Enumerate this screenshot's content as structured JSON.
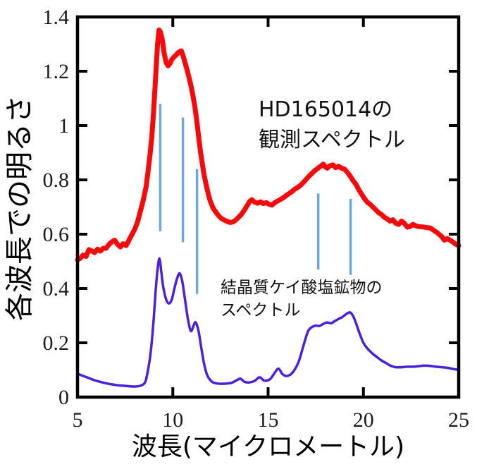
{
  "figure": {
    "background": "#ffffff",
    "axis_color": "#000000",
    "tick_label_color": "#1b1b1b"
  },
  "chart_data": {
    "type": "line",
    "title": "",
    "xlabel": "波長(マイクロメートル)",
    "ylabel": "各波長での明るさ",
    "xlim": [
      5,
      25
    ],
    "ylim": [
      0,
      1.4
    ],
    "x_ticks": [
      5,
      10,
      15,
      20,
      25
    ],
    "x_tick_labels": [
      "5",
      "10",
      "15",
      "20",
      "25"
    ],
    "y_ticks": [
      0,
      0.2,
      0.4,
      0.6,
      0.8,
      1,
      1.2,
      1.4
    ],
    "y_tick_labels": [
      "0",
      "0.2",
      "0.4",
      "0.6",
      "0.8",
      "1",
      "1.2",
      "1.4"
    ],
    "grid": false,
    "legend_position": "none",
    "annotations": [
      {
        "id": "observed",
        "lines": [
          "HD165014の",
          "観測スペクトル"
        ]
      },
      {
        "id": "mineral",
        "lines": [
          "結晶質ケイ酸塩鉱物の",
          "スペクトル"
        ]
      }
    ],
    "marker_lines": {
      "color": "#6fa8dc",
      "width": 3.5,
      "lines": [
        {
          "x": 9.34,
          "y_top": 1.08,
          "y_bottom": 0.61
        },
        {
          "x": 10.53,
          "y_top": 1.03,
          "y_bottom": 0.57
        },
        {
          "x": 11.27,
          "y_top": 0.84,
          "y_bottom": 0.38
        },
        {
          "x": 17.63,
          "y_top": 0.75,
          "y_bottom": 0.47
        },
        {
          "x": 19.33,
          "y_top": 0.73,
          "y_bottom": 0.45
        }
      ]
    },
    "series": [
      {
        "name": "HD165014の観測スペクトル",
        "color": "#f80808",
        "width": 7,
        "smooth": false,
        "points": [
          [
            5.0,
            0.505
          ],
          [
            5.15,
            0.512
          ],
          [
            5.3,
            0.523
          ],
          [
            5.45,
            0.518
          ],
          [
            5.6,
            0.543
          ],
          [
            5.75,
            0.538
          ],
          [
            5.9,
            0.532
          ],
          [
            6.05,
            0.545
          ],
          [
            6.2,
            0.538
          ],
          [
            6.35,
            0.548
          ],
          [
            6.5,
            0.548
          ],
          [
            6.65,
            0.562
          ],
          [
            6.8,
            0.572
          ],
          [
            6.95,
            0.578
          ],
          [
            7.1,
            0.562
          ],
          [
            7.25,
            0.553
          ],
          [
            7.4,
            0.565
          ],
          [
            7.55,
            0.558
          ],
          [
            7.7,
            0.578
          ],
          [
            7.85,
            0.598
          ],
          [
            8.0,
            0.618
          ],
          [
            8.15,
            0.645
          ],
          [
            8.3,
            0.685
          ],
          [
            8.45,
            0.725
          ],
          [
            8.6,
            0.775
          ],
          [
            8.7,
            0.83
          ],
          [
            8.8,
            0.89
          ],
          [
            8.9,
            0.96
          ],
          [
            9.0,
            1.06
          ],
          [
            9.1,
            1.18
          ],
          [
            9.2,
            1.3
          ],
          [
            9.28,
            1.352
          ],
          [
            9.35,
            1.345
          ],
          [
            9.45,
            1.315
          ],
          [
            9.55,
            1.265
          ],
          [
            9.65,
            1.232
          ],
          [
            9.75,
            1.22
          ],
          [
            9.85,
            1.228
          ],
          [
            9.95,
            1.243
          ],
          [
            10.05,
            1.252
          ],
          [
            10.15,
            1.258
          ],
          [
            10.25,
            1.266
          ],
          [
            10.35,
            1.272
          ],
          [
            10.45,
            1.275
          ],
          [
            10.55,
            1.255
          ],
          [
            10.65,
            1.23
          ],
          [
            10.75,
            1.205
          ],
          [
            10.85,
            1.178
          ],
          [
            10.95,
            1.148
          ],
          [
            11.05,
            1.112
          ],
          [
            11.15,
            1.072
          ],
          [
            11.25,
            1.022
          ],
          [
            11.35,
            0.962
          ],
          [
            11.45,
            0.905
          ],
          [
            11.55,
            0.858
          ],
          [
            11.65,
            0.815
          ],
          [
            11.75,
            0.782
          ],
          [
            11.85,
            0.752
          ],
          [
            11.95,
            0.725
          ],
          [
            12.1,
            0.698
          ],
          [
            12.25,
            0.682
          ],
          [
            12.4,
            0.668
          ],
          [
            12.55,
            0.658
          ],
          [
            12.7,
            0.652
          ],
          [
            12.85,
            0.647
          ],
          [
            13.0,
            0.643
          ],
          [
            13.15,
            0.645
          ],
          [
            13.3,
            0.652
          ],
          [
            13.45,
            0.662
          ],
          [
            13.6,
            0.673
          ],
          [
            13.75,
            0.688
          ],
          [
            13.9,
            0.705
          ],
          [
            14.05,
            0.722
          ],
          [
            14.15,
            0.727
          ],
          [
            14.3,
            0.718
          ],
          [
            14.45,
            0.714
          ],
          [
            14.6,
            0.719
          ],
          [
            14.75,
            0.713
          ],
          [
            14.9,
            0.716
          ],
          [
            15.05,
            0.71
          ],
          [
            15.2,
            0.707
          ],
          [
            15.35,
            0.716
          ],
          [
            15.5,
            0.722
          ],
          [
            15.65,
            0.728
          ],
          [
            15.8,
            0.734
          ],
          [
            15.95,
            0.742
          ],
          [
            16.1,
            0.75
          ],
          [
            16.25,
            0.757
          ],
          [
            16.4,
            0.766
          ],
          [
            16.55,
            0.772
          ],
          [
            16.7,
            0.78
          ],
          [
            16.85,
            0.79
          ],
          [
            17.0,
            0.802
          ],
          [
            17.15,
            0.814
          ],
          [
            17.3,
            0.824
          ],
          [
            17.45,
            0.834
          ],
          [
            17.6,
            0.842
          ],
          [
            17.75,
            0.85
          ],
          [
            17.9,
            0.858
          ],
          [
            18.0,
            0.848
          ],
          [
            18.1,
            0.843
          ],
          [
            18.25,
            0.852
          ],
          [
            18.4,
            0.855
          ],
          [
            18.55,
            0.845
          ],
          [
            18.7,
            0.85
          ],
          [
            18.85,
            0.843
          ],
          [
            19.0,
            0.84
          ],
          [
            19.15,
            0.828
          ],
          [
            19.3,
            0.815
          ],
          [
            19.45,
            0.798
          ],
          [
            19.6,
            0.785
          ],
          [
            19.75,
            0.765
          ],
          [
            19.9,
            0.748
          ],
          [
            20.05,
            0.732
          ],
          [
            20.2,
            0.718
          ],
          [
            20.35,
            0.71
          ],
          [
            20.5,
            0.7
          ],
          [
            20.65,
            0.69
          ],
          [
            20.8,
            0.679
          ],
          [
            20.95,
            0.673
          ],
          [
            21.1,
            0.662
          ],
          [
            21.25,
            0.656
          ],
          [
            21.4,
            0.648
          ],
          [
            21.55,
            0.653
          ],
          [
            21.7,
            0.64
          ],
          [
            21.85,
            0.636
          ],
          [
            22.0,
            0.648
          ],
          [
            22.15,
            0.64
          ],
          [
            22.3,
            0.626
          ],
          [
            22.45,
            0.628
          ],
          [
            22.6,
            0.636
          ],
          [
            22.75,
            0.631
          ],
          [
            22.9,
            0.628
          ],
          [
            23.05,
            0.627
          ],
          [
            23.2,
            0.626
          ],
          [
            23.35,
            0.624
          ],
          [
            23.5,
            0.623
          ],
          [
            23.65,
            0.616
          ],
          [
            23.8,
            0.609
          ],
          [
            23.95,
            0.601
          ],
          [
            24.1,
            0.592
          ],
          [
            24.25,
            0.578
          ],
          [
            24.4,
            0.584
          ],
          [
            24.55,
            0.578
          ],
          [
            24.7,
            0.571
          ],
          [
            24.85,
            0.563
          ],
          [
            25.0,
            0.558
          ]
        ]
      },
      {
        "name": "結晶質ケイ酸塩鉱物のスペクトル",
        "color": "#4a21dc",
        "width": 3.5,
        "smooth": true,
        "points": [
          [
            5.0,
            0.086
          ],
          [
            5.3,
            0.078
          ],
          [
            5.6,
            0.07
          ],
          [
            5.9,
            0.062
          ],
          [
            6.2,
            0.056
          ],
          [
            6.5,
            0.051
          ],
          [
            6.8,
            0.047
          ],
          [
            7.1,
            0.044
          ],
          [
            7.4,
            0.042
          ],
          [
            7.7,
            0.04
          ],
          [
            8.0,
            0.039
          ],
          [
            8.3,
            0.042
          ],
          [
            8.55,
            0.055
          ],
          [
            8.7,
            0.1
          ],
          [
            8.85,
            0.17
          ],
          [
            9.0,
            0.29
          ],
          [
            9.1,
            0.39
          ],
          [
            9.2,
            0.47
          ],
          [
            9.3,
            0.51
          ],
          [
            9.4,
            0.46
          ],
          [
            9.5,
            0.405
          ],
          [
            9.65,
            0.36
          ],
          [
            9.8,
            0.345
          ],
          [
            9.95,
            0.36
          ],
          [
            10.1,
            0.405
          ],
          [
            10.25,
            0.442
          ],
          [
            10.37,
            0.455
          ],
          [
            10.5,
            0.425
          ],
          [
            10.65,
            0.355
          ],
          [
            10.8,
            0.285
          ],
          [
            10.95,
            0.243
          ],
          [
            11.1,
            0.265
          ],
          [
            11.2,
            0.275
          ],
          [
            11.35,
            0.243
          ],
          [
            11.5,
            0.18
          ],
          [
            11.65,
            0.12
          ],
          [
            11.8,
            0.082
          ],
          [
            12.0,
            0.06
          ],
          [
            12.2,
            0.052
          ],
          [
            12.5,
            0.049
          ],
          [
            12.8,
            0.05
          ],
          [
            13.1,
            0.053
          ],
          [
            13.35,
            0.062
          ],
          [
            13.55,
            0.068
          ],
          [
            13.75,
            0.057
          ],
          [
            14.0,
            0.054
          ],
          [
            14.3,
            0.06
          ],
          [
            14.55,
            0.073
          ],
          [
            14.8,
            0.061
          ],
          [
            15.1,
            0.066
          ],
          [
            15.35,
            0.09
          ],
          [
            15.55,
            0.105
          ],
          [
            15.75,
            0.085
          ],
          [
            16.0,
            0.078
          ],
          [
            16.3,
            0.092
          ],
          [
            16.6,
            0.13
          ],
          [
            16.9,
            0.2
          ],
          [
            17.1,
            0.243
          ],
          [
            17.3,
            0.258
          ],
          [
            17.5,
            0.263
          ],
          [
            17.7,
            0.262
          ],
          [
            17.9,
            0.27
          ],
          [
            18.1,
            0.275
          ],
          [
            18.3,
            0.272
          ],
          [
            18.5,
            0.28
          ],
          [
            18.7,
            0.288
          ],
          [
            18.9,
            0.295
          ],
          [
            19.1,
            0.306
          ],
          [
            19.3,
            0.312
          ],
          [
            19.45,
            0.3
          ],
          [
            19.6,
            0.275
          ],
          [
            19.8,
            0.235
          ],
          [
            20.0,
            0.2
          ],
          [
            20.2,
            0.18
          ],
          [
            20.45,
            0.162
          ],
          [
            20.7,
            0.148
          ],
          [
            20.95,
            0.135
          ],
          [
            21.2,
            0.125
          ],
          [
            21.45,
            0.115
          ],
          [
            21.7,
            0.11
          ],
          [
            22.0,
            0.11
          ],
          [
            22.3,
            0.112
          ],
          [
            22.6,
            0.112
          ],
          [
            22.9,
            0.114
          ],
          [
            23.2,
            0.116
          ],
          [
            23.5,
            0.115
          ],
          [
            23.8,
            0.112
          ],
          [
            24.1,
            0.11
          ],
          [
            24.4,
            0.108
          ],
          [
            24.7,
            0.104
          ],
          [
            25.0,
            0.1
          ]
        ]
      }
    ]
  }
}
